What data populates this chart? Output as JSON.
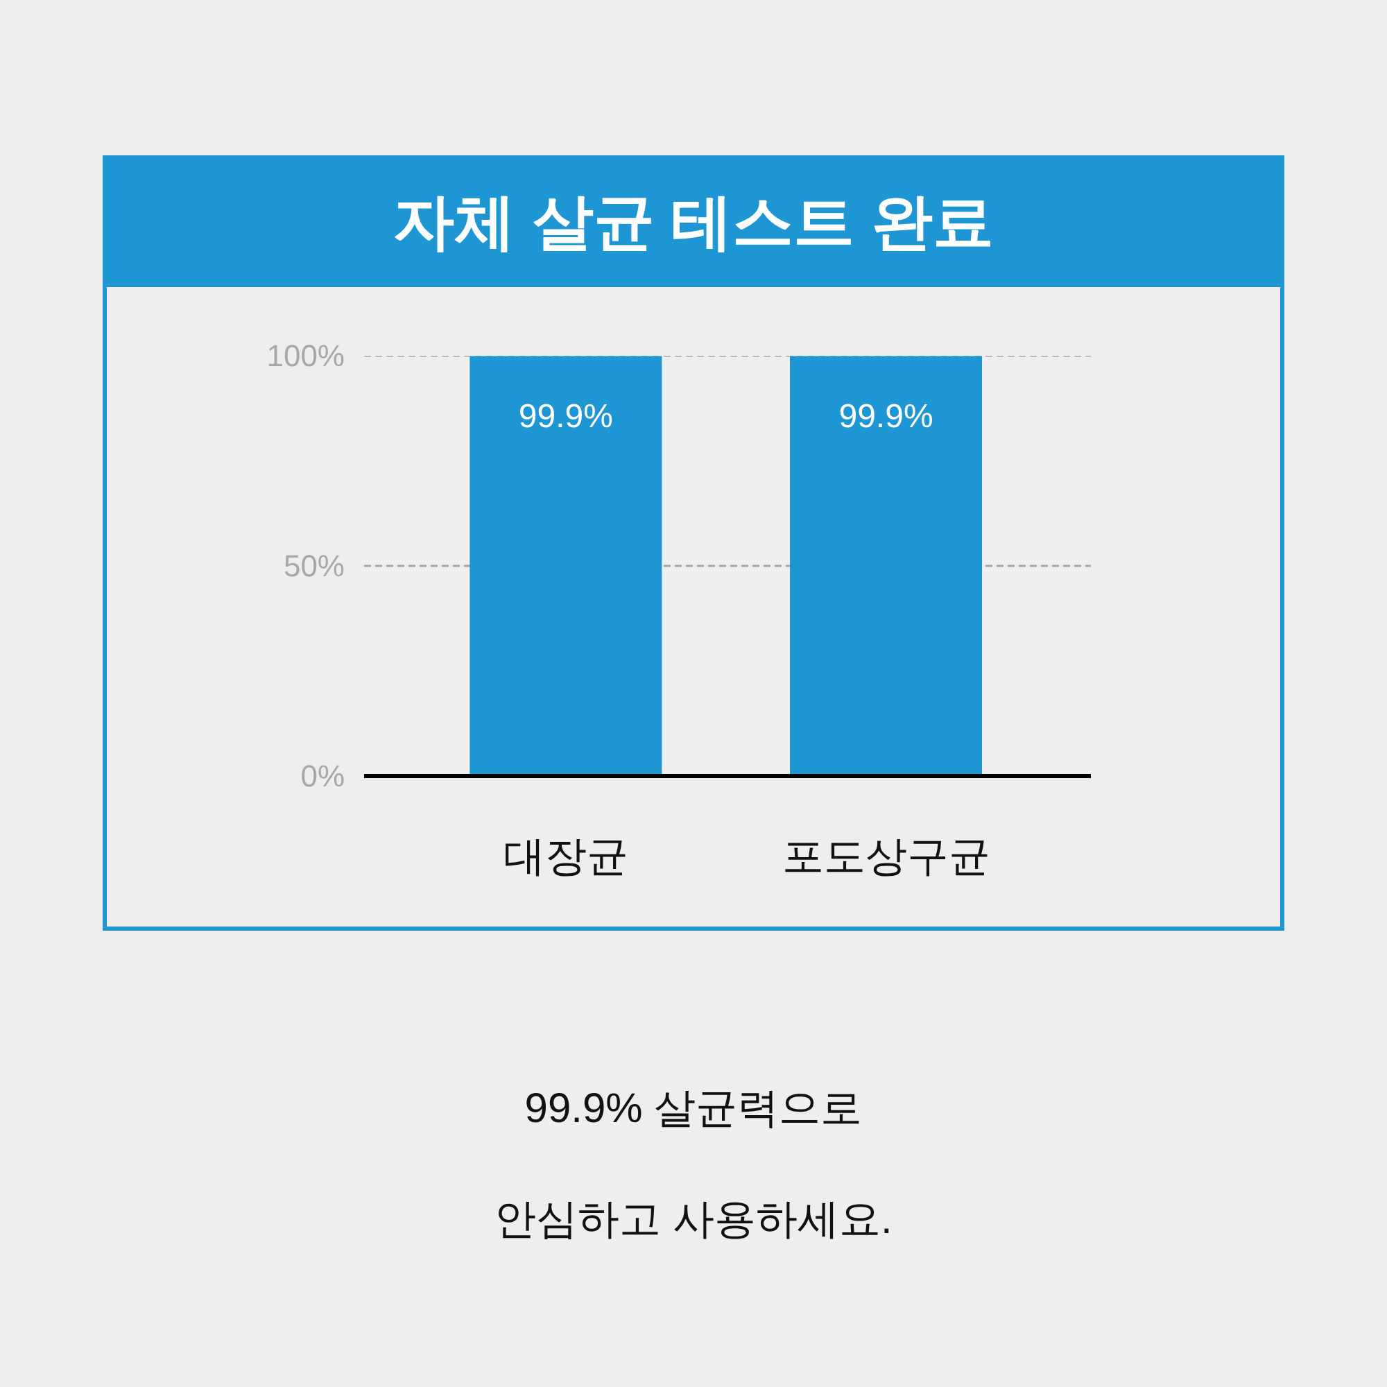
{
  "chart_data": {
    "type": "bar",
    "title": "자체 살균 테스트 완료",
    "categories": [
      "대장균",
      "포도상구균"
    ],
    "values": [
      99.9,
      99.9
    ],
    "color": "#1e96d4",
    "value_labels": [
      "99.9%",
      "99.9%"
    ],
    "ylim": [
      0,
      100
    ],
    "yticks": [
      {
        "value": 0,
        "label": "0%"
      },
      {
        "value": 50,
        "label": "50%"
      },
      {
        "value": 100,
        "label": "100%"
      }
    ],
    "grid": "y",
    "annotations": [
      "99.9% 살균력으로",
      "안심하고 사용하세요."
    ]
  }
}
